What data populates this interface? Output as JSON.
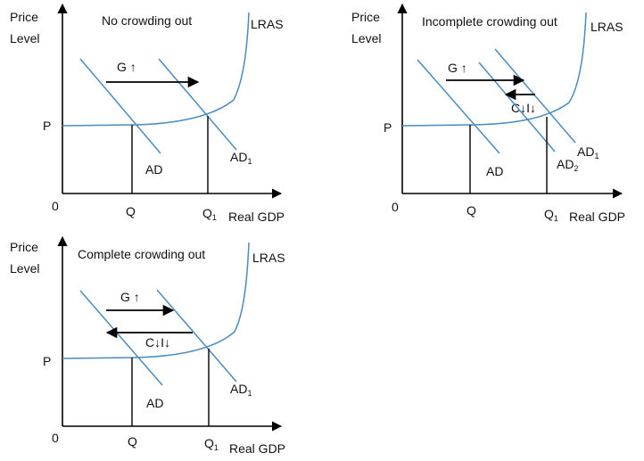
{
  "colors": {
    "curve": "#4a8bc0",
    "axis": "#000000",
    "text": "#111111"
  },
  "panels": [
    {
      "id": "no-crowding",
      "title": "No crowding out",
      "y_axis_label_line1": "Price",
      "y_axis_label_line2": "Level",
      "x_axis_label": "Real GDP",
      "origin_label": "0",
      "price_label": "P",
      "q_label": "Q",
      "q1_label": "Q",
      "q1_subscript": "1",
      "lras_label": "LRAS",
      "ad_label": "AD",
      "ad1_label": "AD",
      "ad1_subscript": "1",
      "shift_label": "G ↑"
    },
    {
      "id": "incomplete-crowding",
      "title": "Incomplete crowding out",
      "y_axis_label_line1": "Price",
      "y_axis_label_line2": "Level",
      "x_axis_label": "Real GDP",
      "origin_label": "0",
      "price_label": "P",
      "q_label": "Q",
      "q1_label": "Q",
      "q1_subscript": "1",
      "lras_label": "LRAS",
      "ad_label": "AD",
      "ad1_label": "AD",
      "ad1_subscript": "1",
      "ad2_label": "AD",
      "ad2_subscript": "2",
      "shift_label": "G ↑",
      "crowd_label": "C↓I↓"
    },
    {
      "id": "complete-crowding",
      "title": "Complete crowding out",
      "y_axis_label_line1": "Price",
      "y_axis_label_line2": "Level",
      "x_axis_label": "Real GDP",
      "origin_label": "0",
      "price_label": "P",
      "q_label": "Q",
      "q1_label": "Q",
      "q1_subscript": "1",
      "lras_label": "LRAS",
      "ad_label": "AD",
      "ad1_label": "AD",
      "ad1_subscript": "1",
      "shift_label": "G ↑",
      "crowd_label": "C↓I↓"
    }
  ]
}
